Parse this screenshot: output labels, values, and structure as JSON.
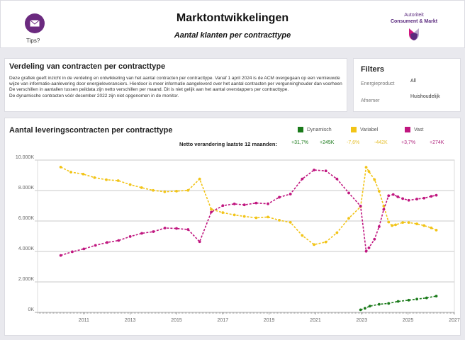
{
  "header": {
    "title": "Marktontwikkelingen",
    "subtitle": "Aantal klanten per contracttype",
    "tips_label": "Tips?",
    "tips_icon": "envelope-icon",
    "logo": {
      "line1": "Autoriteit",
      "line2": "Consument & Markt"
    }
  },
  "info": {
    "title": "Verdeling van contracten per contracttype",
    "text": "Deze grafiek geeft inzicht in de verdeling en ontwikkeling van het aantal contracten per contracttype. Vanaf 1 april 2024 is de ACM overgegaan op een vernieuwde wijze van informatie-aanlevering door energieleveranciers. Hierdoor is meer informatie aangeleverd over het aantal contracten per vergunninghouder dan voorheen\nDe verschillen in aantallen tussen peildata zijn netto verschillen per maand. Dit is niet gelijk aan het aantal overstappers per contracttype.\nDe dynamische contracten vóór december 2022 zijn niet opgenomen in de monitor."
  },
  "filters": {
    "title": "Filters",
    "items": [
      {
        "label": "Energieproduct",
        "value": "All"
      },
      {
        "label": "Afnemer",
        "value": "Huishoudelijk"
      }
    ]
  },
  "chart_data": {
    "type": "line",
    "title": "Aantal leveringscontracten per contracttype",
    "netto_label": "Netto verandering laatste 12 maanden:",
    "netto": [
      {
        "series": "Dynamisch",
        "pct": "+31,7%",
        "abs": "+245K"
      },
      {
        "series": "Variabel",
        "pct": "-7,6%",
        "abs": "-442K"
      },
      {
        "series": "Vast",
        "pct": "+3,7%",
        "abs": "+274K"
      }
    ],
    "xlim": [
      2009,
      2027
    ],
    "xticks": [
      "2011",
      "2013",
      "2015",
      "2017",
      "2019",
      "2021",
      "2023",
      "2025",
      "2027"
    ],
    "ylim": [
      0,
      10000
    ],
    "yticks": [
      {
        "v": 0,
        "label": "0K"
      },
      {
        "v": 2000,
        "label": "2.000K"
      },
      {
        "v": 4000,
        "label": "4.000K"
      },
      {
        "v": 6000,
        "label": "6.000K"
      },
      {
        "v": 8000,
        "label": "8.000K"
      },
      {
        "v": 10000,
        "label": "10.000K"
      }
    ],
    "grid": true,
    "legend": "top-right",
    "series": [
      {
        "name": "Dynamisch",
        "color": "#1a7a1a",
        "points": [
          [
            2022.95,
            170
          ],
          [
            2023.14,
            270
          ],
          [
            2023.35,
            410
          ],
          [
            2023.75,
            530
          ],
          [
            2024.16,
            590
          ],
          [
            2024.57,
            720
          ],
          [
            2025.03,
            800
          ],
          [
            2025.38,
            870
          ],
          [
            2025.8,
            950
          ],
          [
            2026.22,
            1070
          ]
        ]
      },
      {
        "name": "Variabel",
        "color": "#f2c417",
        "points": [
          [
            2010,
            9540
          ],
          [
            2010.44,
            9210
          ],
          [
            2010.97,
            9080
          ],
          [
            2011.46,
            8850
          ],
          [
            2011.97,
            8710
          ],
          [
            2012.48,
            8650
          ],
          [
            2013,
            8390
          ],
          [
            2013.49,
            8190
          ],
          [
            2013.99,
            8010
          ],
          [
            2014.49,
            7920
          ],
          [
            2015,
            7960
          ],
          [
            2015.5,
            8010
          ],
          [
            2016,
            8760
          ],
          [
            2016.5,
            6770
          ],
          [
            2017,
            6550
          ],
          [
            2017.5,
            6400
          ],
          [
            2017.93,
            6300
          ],
          [
            2018.44,
            6210
          ],
          [
            2018.95,
            6260
          ],
          [
            2019.44,
            6050
          ],
          [
            2019.92,
            5910
          ],
          [
            2020.43,
            5050
          ],
          [
            2020.94,
            4450
          ],
          [
            2021.45,
            4620
          ],
          [
            2021.93,
            5230
          ],
          [
            2022.44,
            6180
          ],
          [
            2022.95,
            6940
          ],
          [
            2023.19,
            9530
          ],
          [
            2023.31,
            9250
          ],
          [
            2023.55,
            8720
          ],
          [
            2023.75,
            7960
          ],
          [
            2023.95,
            6980
          ],
          [
            2024.16,
            5930
          ],
          [
            2024.31,
            5700
          ],
          [
            2024.46,
            5750
          ],
          [
            2024.77,
            5900
          ],
          [
            2025.03,
            5900
          ],
          [
            2025.38,
            5810
          ],
          [
            2025.69,
            5700
          ],
          [
            2026,
            5550
          ],
          [
            2026.22,
            5400
          ]
        ]
      },
      {
        "name": "Vast",
        "color": "#c0167f",
        "points": [
          [
            2010,
            3740
          ],
          [
            2010.5,
            3980
          ],
          [
            2011,
            4170
          ],
          [
            2011.5,
            4400
          ],
          [
            2012,
            4590
          ],
          [
            2012.5,
            4720
          ],
          [
            2013,
            4980
          ],
          [
            2013.5,
            5190
          ],
          [
            2014,
            5300
          ],
          [
            2014.5,
            5540
          ],
          [
            2015,
            5510
          ],
          [
            2015.5,
            5440
          ],
          [
            2016,
            4640
          ],
          [
            2016.5,
            6580
          ],
          [
            2017,
            7010
          ],
          [
            2017.5,
            7120
          ],
          [
            2017.93,
            7060
          ],
          [
            2018.44,
            7180
          ],
          [
            2018.95,
            7130
          ],
          [
            2019.44,
            7560
          ],
          [
            2019.92,
            7770
          ],
          [
            2020.43,
            8760
          ],
          [
            2020.94,
            9350
          ],
          [
            2021.45,
            9290
          ],
          [
            2021.93,
            8760
          ],
          [
            2022.44,
            7840
          ],
          [
            2022.95,
            6980
          ],
          [
            2023.19,
            4010
          ],
          [
            2023.31,
            4240
          ],
          [
            2023.55,
            4800
          ],
          [
            2023.75,
            5630
          ],
          [
            2023.95,
            6760
          ],
          [
            2024.16,
            7660
          ],
          [
            2024.36,
            7740
          ],
          [
            2024.56,
            7590
          ],
          [
            2024.77,
            7470
          ],
          [
            2025.03,
            7360
          ],
          [
            2025.38,
            7440
          ],
          [
            2025.69,
            7500
          ],
          [
            2026,
            7620
          ],
          [
            2026.22,
            7690
          ]
        ]
      }
    ]
  }
}
